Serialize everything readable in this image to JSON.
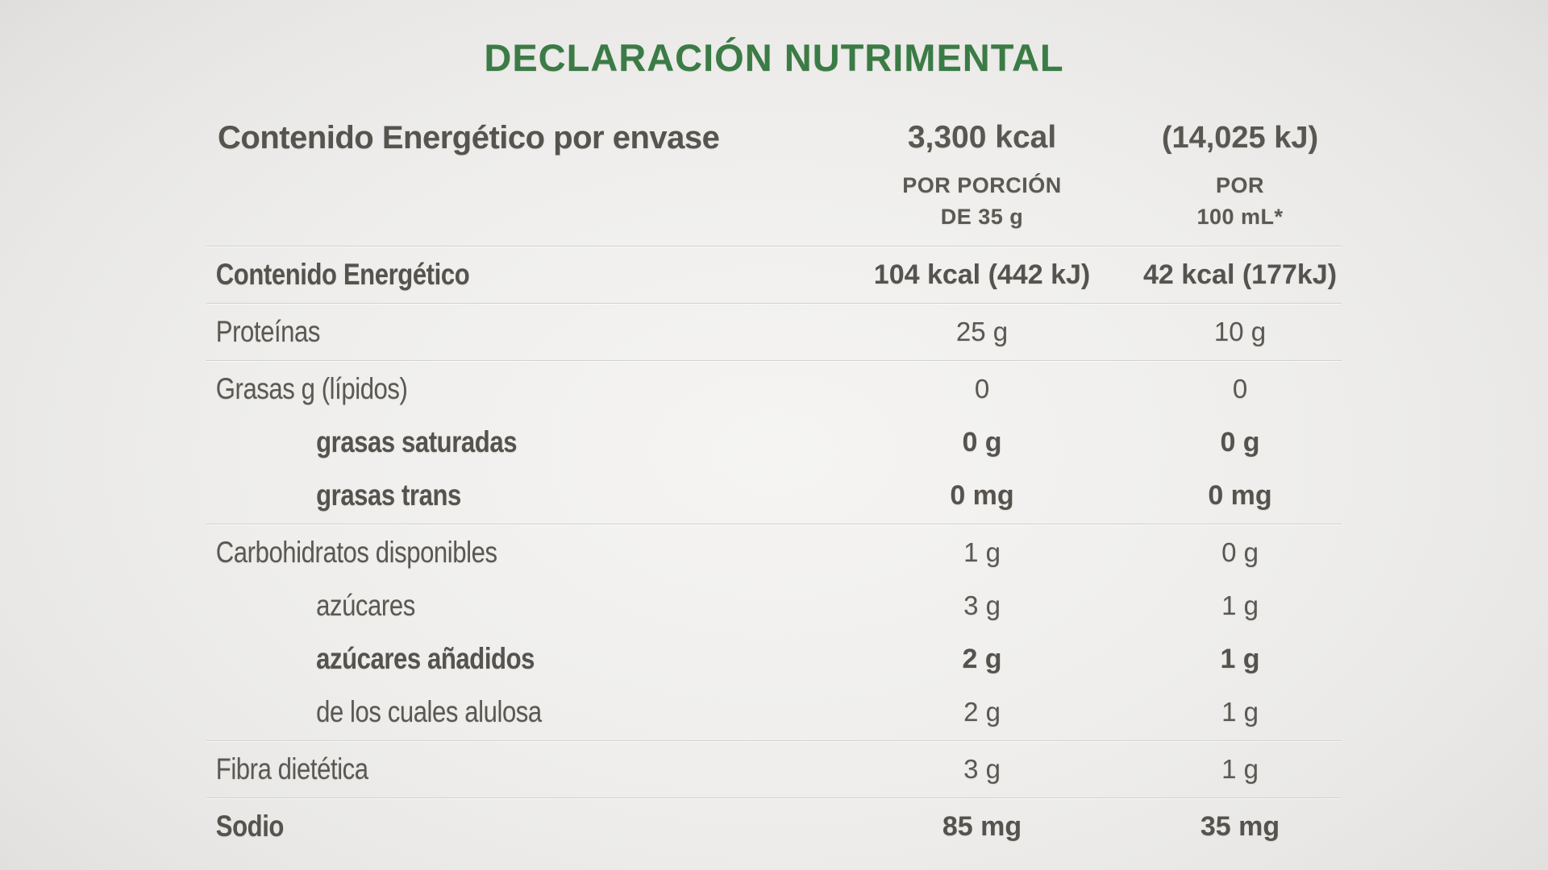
{
  "page": {
    "title": "DECLARACIÓN NUTRIMENTAL"
  },
  "colors": {
    "accent_green": "#3b7b45",
    "text": "#5a5752",
    "divider": "#d2d0cd"
  },
  "header": {
    "label": "Contenido Energético por envase",
    "kcal": "3,300 kcal",
    "kj": "(14,025 kJ)"
  },
  "columns": {
    "portion": {
      "line1": "POR PORCIÓN",
      "line2": "DE 35 g"
    },
    "per100ml": {
      "line1": "POR",
      "line2": "100 mL*"
    }
  },
  "rows": [
    {
      "label": "Contenido Energético",
      "v1": "104 kcal (442 kJ)",
      "v2": "42 kcal (177kJ)",
      "bold": true,
      "indent": false,
      "divider": true
    },
    {
      "label": "Proteínas",
      "v1": "25 g",
      "v2": "10 g",
      "bold": false,
      "indent": false,
      "divider": true
    },
    {
      "label": "Grasas g (lípidos)",
      "v1": "0",
      "v2": "0",
      "bold": false,
      "indent": false,
      "divider": false
    },
    {
      "label": "grasas saturadas",
      "v1": "0 g",
      "v2": "0 g",
      "bold": true,
      "indent": true,
      "divider": false
    },
    {
      "label": "grasas trans",
      "v1": "0 mg",
      "v2": "0 mg",
      "bold": true,
      "indent": true,
      "divider": true
    },
    {
      "label": "Carbohidratos disponibles",
      "v1": "1 g",
      "v2": "0 g",
      "bold": false,
      "indent": false,
      "divider": false
    },
    {
      "label": "azúcares",
      "v1": "3 g",
      "v2": "1 g",
      "bold": false,
      "indent": true,
      "divider": false
    },
    {
      "label": "azúcares añadidos",
      "v1": "2 g",
      "v2": "1 g",
      "bold": true,
      "indent": true,
      "divider": false
    },
    {
      "label": "de los cuales alulosa",
      "v1": "2 g",
      "v2": "1 g",
      "bold": false,
      "indent": true,
      "divider": true
    },
    {
      "label": "Fibra dietética",
      "v1": "3 g",
      "v2": "1 g",
      "bold": false,
      "indent": false,
      "divider": true
    },
    {
      "label": "Sodio",
      "v1": "85 mg",
      "v2": "35 mg",
      "bold": true,
      "indent": false,
      "divider": false
    }
  ]
}
